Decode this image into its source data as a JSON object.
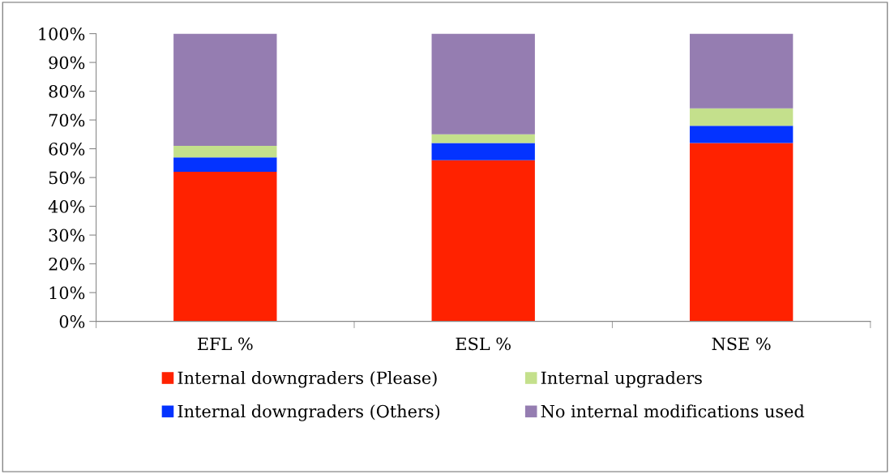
{
  "chart_data": {
    "type": "bar",
    "stacked": true,
    "categories": [
      "EFL %",
      "ESL %",
      "NSE %"
    ],
    "series": [
      {
        "name": "Internal downgraders (Please)",
        "color": "#ff2200",
        "values": [
          52,
          56,
          62
        ]
      },
      {
        "name": "Internal downgraders (Others)",
        "color": "#0433ff",
        "values": [
          5,
          6,
          6
        ]
      },
      {
        "name": "Internal upgraders",
        "color": "#c4e08c",
        "values": [
          4,
          3,
          6
        ]
      },
      {
        "name": "No internal modifications used",
        "color": "#957db1",
        "values": [
          39,
          35,
          26
        ]
      }
    ],
    "ylim": [
      0,
      100
    ],
    "yticks": [
      {
        "value": 0,
        "label": "0%"
      },
      {
        "value": 10,
        "label": "10%"
      },
      {
        "value": 20,
        "label": "20%"
      },
      {
        "value": 30,
        "label": "30%"
      },
      {
        "value": 40,
        "label": "40%"
      },
      {
        "value": 50,
        "label": "50%"
      },
      {
        "value": 60,
        "label": "60%"
      },
      {
        "value": 70,
        "label": "70%"
      },
      {
        "value": 80,
        "label": "80%"
      },
      {
        "value": 90,
        "label": "90%"
      },
      {
        "value": 100,
        "label": "100%"
      }
    ],
    "grid": false,
    "legend": "bottom"
  }
}
